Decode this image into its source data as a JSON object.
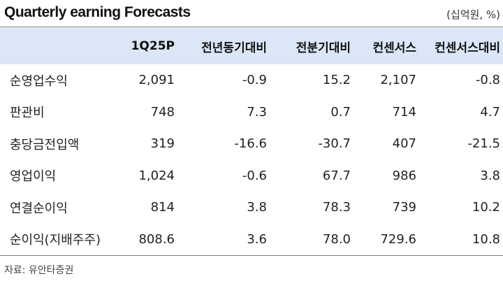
{
  "title": "Quarterly earning Forecasts",
  "unit": "(십억원, %)",
  "columns": [
    "",
    "1Q25P",
    "전년동기대비",
    "전분기대비",
    "컨센서스",
    "컨센서스대비"
  ],
  "rows": [
    {
      "label": "순영업수익",
      "values": [
        "2,091",
        "-0.9",
        "15.2",
        "2,107",
        "-0.8"
      ]
    },
    {
      "label": "판관비",
      "values": [
        "748",
        "7.3",
        "0.7",
        "714",
        "4.7"
      ]
    },
    {
      "label": "충당금전입액",
      "values": [
        "319",
        "-16.6",
        "-30.7",
        "407",
        "-21.5"
      ]
    },
    {
      "label": "영업이익",
      "values": [
        "1,024",
        "-0.6",
        "67.7",
        "986",
        "3.8"
      ]
    },
    {
      "label": "연결순이익",
      "values": [
        "814",
        "3.8",
        "78.3",
        "739",
        "10.2"
      ]
    },
    {
      "label": "순이익(지배주주)",
      "values": [
        "808.6",
        "3.6",
        "78.0",
        "729.6",
        "10.8"
      ]
    }
  ],
  "source": "자료: 유안타증권"
}
